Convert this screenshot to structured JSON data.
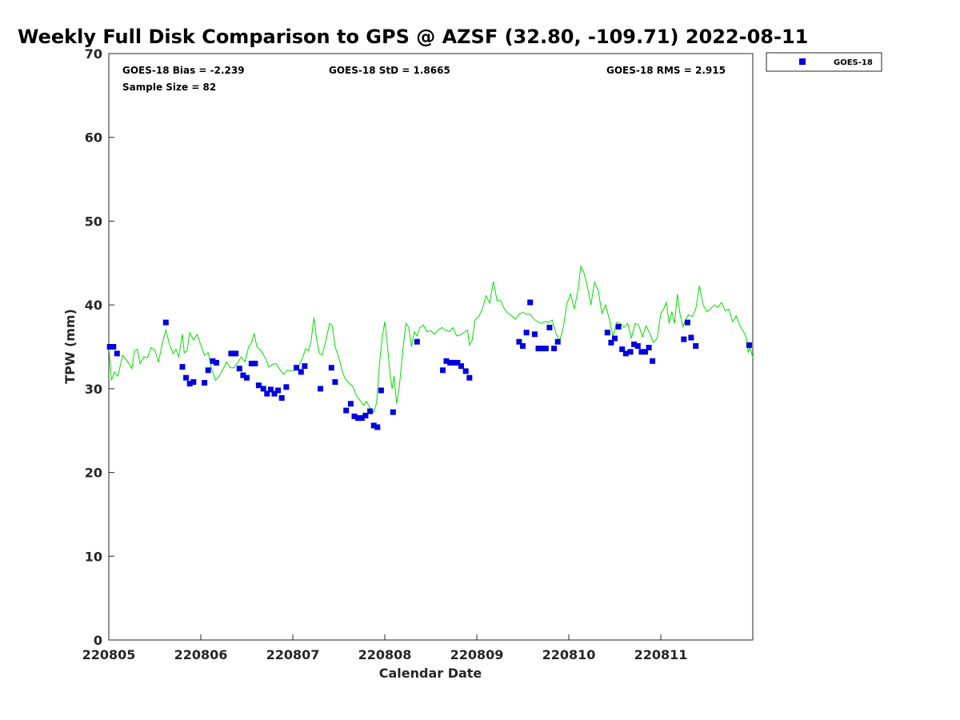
{
  "chart_data": {
    "type": "scatter",
    "title": "Weekly Full Disk Comparison to GPS @ AZSF (32.80, -109.71) 2022-08-11",
    "xlabel": "Calendar Date",
    "ylabel": "TPW (mm)",
    "xlim": [
      0,
      7
    ],
    "ylim": [
      0,
      70
    ],
    "x_tick_values": [
      0,
      1,
      2,
      3,
      4,
      5,
      6
    ],
    "x_tick_labels": [
      "220805",
      "220806",
      "220807",
      "220808",
      "220809",
      "220810",
      "220811"
    ],
    "y_ticks": [
      0,
      10,
      20,
      30,
      40,
      50,
      60,
      70
    ],
    "stats": {
      "bias": "GOES-18 Bias = -2.239",
      "std": "GOES-18 StD = 1.8665",
      "rms": "GOES-18 RMS = 2.915",
      "sample_size": "Sample Size = 82"
    },
    "legend": {
      "label": "GOES-18",
      "position": "top-right outside"
    },
    "series": [
      {
        "name": "GOES-18",
        "marker": "square",
        "color": "#0000e0",
        "points": [
          [
            0.01,
            35.0
          ],
          [
            0.05,
            35.0
          ],
          [
            0.09,
            34.2
          ],
          [
            0.62,
            37.9
          ],
          [
            0.8,
            32.6
          ],
          [
            0.84,
            31.3
          ],
          [
            0.88,
            30.6
          ],
          [
            0.92,
            30.8
          ],
          [
            1.04,
            30.7
          ],
          [
            1.08,
            32.2
          ],
          [
            1.13,
            33.3
          ],
          [
            1.17,
            33.1
          ],
          [
            1.33,
            34.2
          ],
          [
            1.38,
            34.2
          ],
          [
            1.42,
            32.4
          ],
          [
            1.46,
            31.6
          ],
          [
            1.5,
            31.3
          ],
          [
            1.55,
            33.0
          ],
          [
            1.59,
            33.0
          ],
          [
            1.63,
            30.4
          ],
          [
            1.68,
            30.0
          ],
          [
            1.72,
            29.4
          ],
          [
            1.76,
            29.9
          ],
          [
            1.8,
            29.4
          ],
          [
            1.84,
            29.8
          ],
          [
            1.88,
            28.9
          ],
          [
            1.93,
            30.2
          ],
          [
            2.04,
            32.5
          ],
          [
            2.09,
            32.0
          ],
          [
            2.13,
            32.7
          ],
          [
            2.3,
            30.0
          ],
          [
            2.42,
            32.5
          ],
          [
            2.46,
            30.8
          ],
          [
            2.58,
            27.4
          ],
          [
            2.63,
            28.2
          ],
          [
            2.67,
            26.7
          ],
          [
            2.71,
            26.5
          ],
          [
            2.75,
            26.5
          ],
          [
            2.79,
            26.8
          ],
          [
            2.84,
            27.3
          ],
          [
            2.88,
            25.6
          ],
          [
            2.92,
            25.4
          ],
          [
            2.96,
            29.8
          ],
          [
            3.09,
            27.2
          ],
          [
            3.35,
            35.6
          ],
          [
            3.63,
            32.2
          ],
          [
            3.67,
            33.3
          ],
          [
            3.71,
            33.1
          ],
          [
            3.75,
            33.1
          ],
          [
            3.79,
            33.1
          ],
          [
            3.83,
            32.7
          ],
          [
            3.88,
            32.1
          ],
          [
            3.92,
            31.3
          ],
          [
            4.46,
            35.6
          ],
          [
            4.5,
            35.1
          ],
          [
            4.54,
            36.7
          ],
          [
            4.58,
            40.3
          ],
          [
            4.63,
            36.5
          ],
          [
            4.67,
            34.8
          ],
          [
            4.71,
            34.8
          ],
          [
            4.75,
            34.8
          ],
          [
            4.79,
            37.3
          ],
          [
            4.84,
            34.8
          ],
          [
            4.88,
            35.6
          ],
          [
            5.42,
            36.7
          ],
          [
            5.46,
            35.5
          ],
          [
            5.5,
            36.0
          ],
          [
            5.54,
            37.4
          ],
          [
            5.58,
            34.7
          ],
          [
            5.62,
            34.2
          ],
          [
            5.67,
            34.4
          ],
          [
            5.71,
            35.3
          ],
          [
            5.75,
            35.1
          ],
          [
            5.79,
            34.4
          ],
          [
            5.83,
            34.4
          ],
          [
            5.87,
            34.9
          ],
          [
            5.91,
            33.3
          ],
          [
            6.25,
            35.9
          ],
          [
            6.29,
            37.9
          ],
          [
            6.33,
            36.1
          ],
          [
            6.38,
            35.1
          ],
          [
            6.96,
            35.2
          ]
        ]
      },
      {
        "name": "GPS",
        "marker": "line",
        "color": "#00e000",
        "points": [
          [
            0.0,
            35.0
          ],
          [
            0.03,
            31.0
          ],
          [
            0.06,
            32.0
          ],
          [
            0.1,
            31.5
          ],
          [
            0.15,
            34.0
          ],
          [
            0.2,
            33.3
          ],
          [
            0.25,
            32.4
          ],
          [
            0.28,
            34.5
          ],
          [
            0.31,
            34.7
          ],
          [
            0.34,
            33.0
          ],
          [
            0.38,
            33.8
          ],
          [
            0.42,
            33.7
          ],
          [
            0.46,
            34.9
          ],
          [
            0.5,
            34.6
          ],
          [
            0.54,
            33.2
          ],
          [
            0.58,
            35.3
          ],
          [
            0.62,
            37.0
          ],
          [
            0.66,
            35.3
          ],
          [
            0.7,
            34.2
          ],
          [
            0.73,
            34.7
          ],
          [
            0.76,
            33.8
          ],
          [
            0.8,
            36.5
          ],
          [
            0.82,
            34.3
          ],
          [
            0.85,
            34.5
          ],
          [
            0.88,
            36.7
          ],
          [
            0.92,
            35.8
          ],
          [
            0.96,
            36.5
          ],
          [
            1.0,
            35.2
          ],
          [
            1.04,
            34.0
          ],
          [
            1.08,
            34.3
          ],
          [
            1.12,
            32.3
          ],
          [
            1.16,
            31.0
          ],
          [
            1.2,
            31.5
          ],
          [
            1.24,
            32.3
          ],
          [
            1.28,
            33.2
          ],
          [
            1.32,
            32.5
          ],
          [
            1.36,
            32.5
          ],
          [
            1.4,
            33.1
          ],
          [
            1.44,
            33.8
          ],
          [
            1.48,
            33.2
          ],
          [
            1.52,
            35.0
          ],
          [
            1.55,
            35.5
          ],
          [
            1.58,
            36.6
          ],
          [
            1.61,
            35.0
          ],
          [
            1.65,
            34.6
          ],
          [
            1.7,
            33.7
          ],
          [
            1.74,
            32.6
          ],
          [
            1.78,
            32.9
          ],
          [
            1.82,
            33.0
          ],
          [
            1.86,
            32.3
          ],
          [
            1.9,
            31.7
          ],
          [
            1.94,
            32.2
          ],
          [
            1.98,
            32.1
          ],
          [
            2.02,
            32.2
          ],
          [
            2.06,
            32.6
          ],
          [
            2.1,
            33.5
          ],
          [
            2.14,
            34.8
          ],
          [
            2.17,
            34.5
          ],
          [
            2.2,
            35.8
          ],
          [
            2.23,
            38.5
          ],
          [
            2.26,
            35.8
          ],
          [
            2.29,
            34.2
          ],
          [
            2.32,
            34.0
          ],
          [
            2.36,
            35.8
          ],
          [
            2.4,
            37.8
          ],
          [
            2.43,
            37.5
          ],
          [
            2.46,
            35.0
          ],
          [
            2.5,
            33.7
          ],
          [
            2.54,
            32.0
          ],
          [
            2.57,
            31.2
          ],
          [
            2.61,
            30.7
          ],
          [
            2.65,
            30.3
          ],
          [
            2.69,
            29.2
          ],
          [
            2.73,
            28.6
          ],
          [
            2.77,
            28.0
          ],
          [
            2.8,
            28.5
          ],
          [
            2.84,
            27.7
          ],
          [
            2.88,
            27.2
          ],
          [
            2.91,
            28.3
          ],
          [
            2.94,
            32.7
          ],
          [
            2.97,
            36.0
          ],
          [
            3.0,
            38.0
          ],
          [
            3.03,
            35.0
          ],
          [
            3.06,
            31.5
          ],
          [
            3.08,
            30.0
          ],
          [
            3.1,
            31.5
          ],
          [
            3.13,
            28.2
          ],
          [
            3.16,
            30.5
          ],
          [
            3.2,
            35.0
          ],
          [
            3.23,
            37.8
          ],
          [
            3.26,
            37.3
          ],
          [
            3.29,
            35.0
          ],
          [
            3.32,
            36.8
          ],
          [
            3.35,
            36.3
          ],
          [
            3.38,
            37.3
          ],
          [
            3.42,
            37.6
          ],
          [
            3.46,
            36.8
          ],
          [
            3.5,
            36.9
          ],
          [
            3.54,
            36.5
          ],
          [
            3.58,
            37.0
          ],
          [
            3.62,
            37.3
          ],
          [
            3.66,
            37.0
          ],
          [
            3.7,
            36.8
          ],
          [
            3.74,
            37.3
          ],
          [
            3.78,
            36.3
          ],
          [
            3.82,
            36.4
          ],
          [
            3.86,
            36.7
          ],
          [
            3.9,
            37.0
          ],
          [
            3.92,
            35.2
          ],
          [
            3.95,
            35.8
          ],
          [
            3.98,
            38.2
          ],
          [
            4.02,
            38.6
          ],
          [
            4.06,
            39.5
          ],
          [
            4.1,
            41.1
          ],
          [
            4.14,
            40.2
          ],
          [
            4.18,
            42.8
          ],
          [
            4.22,
            40.5
          ],
          [
            4.26,
            40.5
          ],
          [
            4.3,
            39.5
          ],
          [
            4.34,
            39.0
          ],
          [
            4.38,
            38.7
          ],
          [
            4.42,
            38.3
          ],
          [
            4.46,
            38.9
          ],
          [
            4.5,
            39.1
          ],
          [
            4.54,
            38.9
          ],
          [
            4.58,
            38.9
          ],
          [
            4.62,
            38.3
          ],
          [
            4.66,
            38.0
          ],
          [
            4.7,
            37.8
          ],
          [
            4.74,
            38.0
          ],
          [
            4.78,
            37.9
          ],
          [
            4.82,
            38.2
          ],
          [
            4.86,
            36.6
          ],
          [
            4.9,
            35.7
          ],
          [
            4.94,
            37.3
          ],
          [
            4.98,
            40.2
          ],
          [
            5.02,
            41.3
          ],
          [
            5.06,
            39.5
          ],
          [
            5.1,
            41.8
          ],
          [
            5.13,
            44.6
          ],
          [
            5.16,
            44.0
          ],
          [
            5.2,
            42.3
          ],
          [
            5.24,
            40.0
          ],
          [
            5.28,
            42.7
          ],
          [
            5.32,
            41.7
          ],
          [
            5.36,
            39.0
          ],
          [
            5.4,
            40.0
          ],
          [
            5.44,
            38.3
          ],
          [
            5.48,
            36.3
          ],
          [
            5.52,
            37.9
          ],
          [
            5.56,
            37.8
          ],
          [
            5.6,
            37.3
          ],
          [
            5.64,
            37.8
          ],
          [
            5.68,
            36.0
          ],
          [
            5.72,
            37.8
          ],
          [
            5.76,
            37.6
          ],
          [
            5.8,
            36.2
          ],
          [
            5.84,
            37.5
          ],
          [
            5.88,
            36.6
          ],
          [
            5.92,
            35.5
          ],
          [
            5.96,
            36.0
          ],
          [
            6.0,
            39.0
          ],
          [
            6.03,
            39.5
          ],
          [
            6.06,
            40.3
          ],
          [
            6.09,
            37.8
          ],
          [
            6.12,
            39.2
          ],
          [
            6.15,
            37.8
          ],
          [
            6.18,
            41.3
          ],
          [
            6.21,
            38.9
          ],
          [
            6.24,
            37.4
          ],
          [
            6.27,
            38.2
          ],
          [
            6.3,
            38.8
          ],
          [
            6.34,
            38.6
          ],
          [
            6.38,
            39.5
          ],
          [
            6.42,
            42.3
          ],
          [
            6.46,
            40.0
          ],
          [
            6.5,
            39.2
          ],
          [
            6.54,
            39.5
          ],
          [
            6.58,
            40.0
          ],
          [
            6.62,
            39.7
          ],
          [
            6.66,
            40.3
          ],
          [
            6.7,
            39.3
          ],
          [
            6.74,
            39.5
          ],
          [
            6.78,
            38.0
          ],
          [
            6.82,
            38.7
          ],
          [
            6.86,
            37.5
          ],
          [
            6.9,
            36.8
          ],
          [
            6.93,
            36.0
          ],
          [
            6.95,
            34.3
          ],
          [
            6.97,
            35.0
          ],
          [
            7.0,
            33.7
          ]
        ]
      }
    ]
  }
}
